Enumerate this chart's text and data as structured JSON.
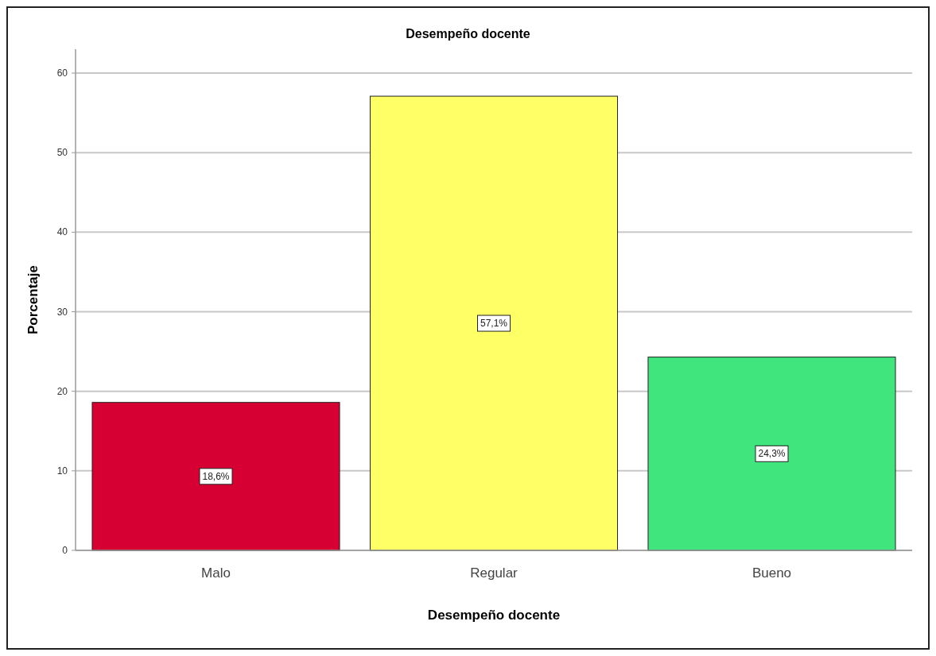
{
  "chart_data": {
    "type": "bar",
    "title": "Desempeño docente",
    "xlabel": "Desempeño docente",
    "ylabel": "Porcentaje",
    "categories": [
      "Malo",
      "Regular",
      "Bueno"
    ],
    "values": [
      18.6,
      57.1,
      24.3
    ],
    "value_labels": [
      "18,6%",
      "57,1%",
      "24,3%"
    ],
    "colors": [
      "#d70032",
      "#ffff66",
      "#40e67d"
    ],
    "ylim": [
      0,
      63
    ],
    "yticks": [
      0,
      10,
      20,
      30,
      40,
      50,
      60
    ],
    "grid": "y"
  }
}
